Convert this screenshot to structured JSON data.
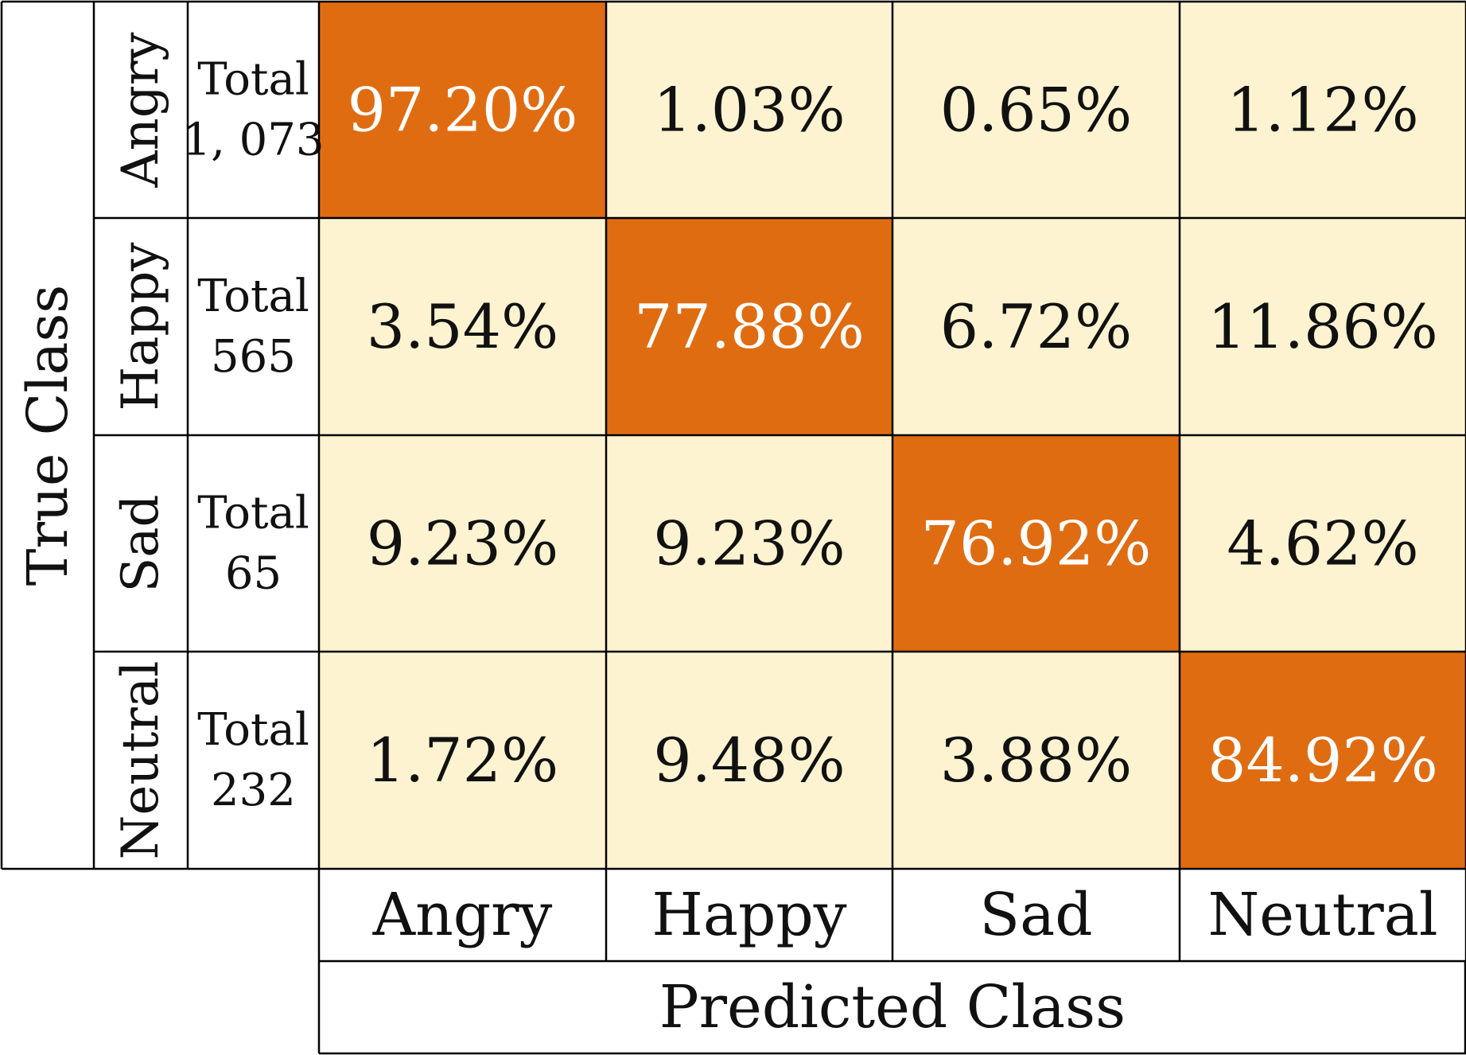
{
  "chart_data": {
    "type": "heatmap",
    "title": "",
    "xlabel": "Predicted Class",
    "ylabel": "True Class",
    "x_categories": [
      "Angry",
      "Happy",
      "Sad",
      "Neutral"
    ],
    "y_categories": [
      "Angry",
      "Happy",
      "Sad",
      "Neutral"
    ],
    "row_totals": [
      {
        "label": "Total",
        "value": "1, 073"
      },
      {
        "label": "Total",
        "value": "565"
      },
      {
        "label": "Total",
        "value": "65"
      },
      {
        "label": "Total",
        "value": "232"
      }
    ],
    "values": [
      [
        97.2,
        1.03,
        0.65,
        1.12
      ],
      [
        3.54,
        77.88,
        6.72,
        11.86
      ],
      [
        9.23,
        9.23,
        76.92,
        4.62
      ],
      [
        1.72,
        9.48,
        3.88,
        84.92
      ]
    ],
    "cell_labels": [
      [
        "97.20%",
        "1.03%",
        "0.65%",
        "1.12%"
      ],
      [
        "3.54%",
        "77.88%",
        "6.72%",
        "11.86%"
      ],
      [
        "9.23%",
        "9.23%",
        "76.92%",
        "4.62%"
      ],
      [
        "1.72%",
        "9.48%",
        "3.88%",
        "84.92%"
      ]
    ],
    "colors": {
      "high": "#e06c12",
      "low": "#fdf3d0",
      "high_text": "#ffffff",
      "low_text": "#111111",
      "grid": "#000000"
    }
  }
}
